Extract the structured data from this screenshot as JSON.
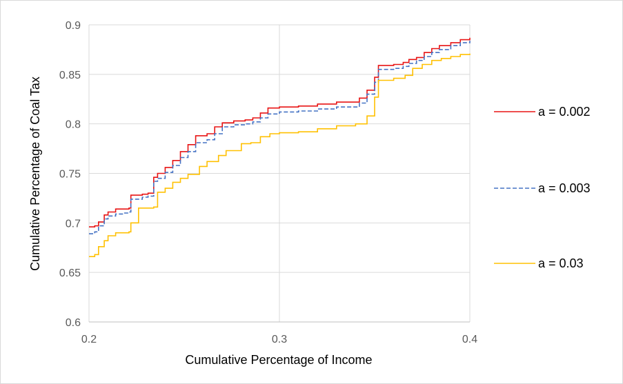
{
  "chart_data": {
    "type": "line",
    "title": "",
    "xlabel": "Cumulative Percentage of Income",
    "ylabel": "Cumulative Percentage of Coal Tax",
    "xlim": [
      0.2,
      0.4
    ],
    "ylim": [
      0.6,
      0.9
    ],
    "xticks": [
      "0.2",
      "0.3",
      "0.4"
    ],
    "yticks": [
      "0.6",
      "0.65",
      "0.7",
      "0.75",
      "0.8",
      "0.85",
      "0.9"
    ],
    "grid": true,
    "legend": "right",
    "series": [
      {
        "name": "a = 0.002",
        "color": "#e81313",
        "dash": "solid",
        "x": [
          0.2,
          0.203,
          0.205,
          0.208,
          0.21,
          0.214,
          0.218,
          0.221,
          0.222,
          0.228,
          0.231,
          0.234,
          0.236,
          0.24,
          0.244,
          0.248,
          0.252,
          0.256,
          0.262,
          0.266,
          0.27,
          0.276,
          0.282,
          0.286,
          0.29,
          0.294,
          0.3,
          0.31,
          0.32,
          0.33,
          0.342,
          0.346,
          0.35,
          0.352,
          0.36,
          0.365,
          0.368,
          0.372,
          0.376,
          0.38,
          0.384,
          0.39,
          0.395,
          0.4
        ],
        "y": [
          0.696,
          0.697,
          0.701,
          0.708,
          0.711,
          0.714,
          0.714,
          0.715,
          0.728,
          0.729,
          0.73,
          0.746,
          0.75,
          0.756,
          0.763,
          0.772,
          0.779,
          0.788,
          0.79,
          0.797,
          0.801,
          0.803,
          0.804,
          0.806,
          0.811,
          0.816,
          0.817,
          0.818,
          0.82,
          0.822,
          0.826,
          0.834,
          0.847,
          0.859,
          0.86,
          0.862,
          0.865,
          0.867,
          0.872,
          0.876,
          0.879,
          0.882,
          0.885,
          0.887
        ]
      },
      {
        "name": "a = 0.003",
        "color": "#4472c4",
        "dash": "dashed",
        "x": [
          0.2,
          0.203,
          0.205,
          0.208,
          0.21,
          0.214,
          0.218,
          0.221,
          0.222,
          0.228,
          0.231,
          0.234,
          0.236,
          0.24,
          0.244,
          0.248,
          0.252,
          0.256,
          0.262,
          0.266,
          0.27,
          0.276,
          0.282,
          0.286,
          0.29,
          0.294,
          0.3,
          0.31,
          0.32,
          0.33,
          0.342,
          0.346,
          0.35,
          0.352,
          0.36,
          0.365,
          0.368,
          0.372,
          0.376,
          0.38,
          0.384,
          0.39,
          0.395,
          0.4
        ],
        "y": [
          0.689,
          0.691,
          0.697,
          0.704,
          0.707,
          0.709,
          0.71,
          0.711,
          0.724,
          0.726,
          0.727,
          0.742,
          0.745,
          0.751,
          0.758,
          0.766,
          0.772,
          0.781,
          0.784,
          0.79,
          0.797,
          0.799,
          0.8,
          0.802,
          0.806,
          0.81,
          0.812,
          0.813,
          0.815,
          0.817,
          0.821,
          0.83,
          0.842,
          0.855,
          0.856,
          0.858,
          0.861,
          0.864,
          0.868,
          0.872,
          0.875,
          0.879,
          0.882,
          0.884
        ]
      },
      {
        "name": "a = 0.03",
        "color": "#ffc000",
        "dash": "solid",
        "x": [
          0.2,
          0.203,
          0.205,
          0.208,
          0.21,
          0.214,
          0.218,
          0.221,
          0.222,
          0.226,
          0.228,
          0.234,
          0.236,
          0.24,
          0.244,
          0.248,
          0.252,
          0.258,
          0.262,
          0.268,
          0.272,
          0.28,
          0.285,
          0.29,
          0.295,
          0.3,
          0.31,
          0.32,
          0.33,
          0.34,
          0.346,
          0.35,
          0.352,
          0.36,
          0.366,
          0.37,
          0.375,
          0.38,
          0.385,
          0.39,
          0.395,
          0.4
        ],
        "y": [
          0.666,
          0.668,
          0.676,
          0.682,
          0.687,
          0.69,
          0.69,
          0.691,
          0.7,
          0.715,
          0.715,
          0.716,
          0.731,
          0.735,
          0.741,
          0.745,
          0.749,
          0.757,
          0.762,
          0.768,
          0.773,
          0.78,
          0.781,
          0.787,
          0.79,
          0.791,
          0.792,
          0.795,
          0.798,
          0.8,
          0.808,
          0.827,
          0.844,
          0.846,
          0.849,
          0.856,
          0.86,
          0.864,
          0.866,
          0.868,
          0.87,
          0.871
        ]
      }
    ]
  }
}
